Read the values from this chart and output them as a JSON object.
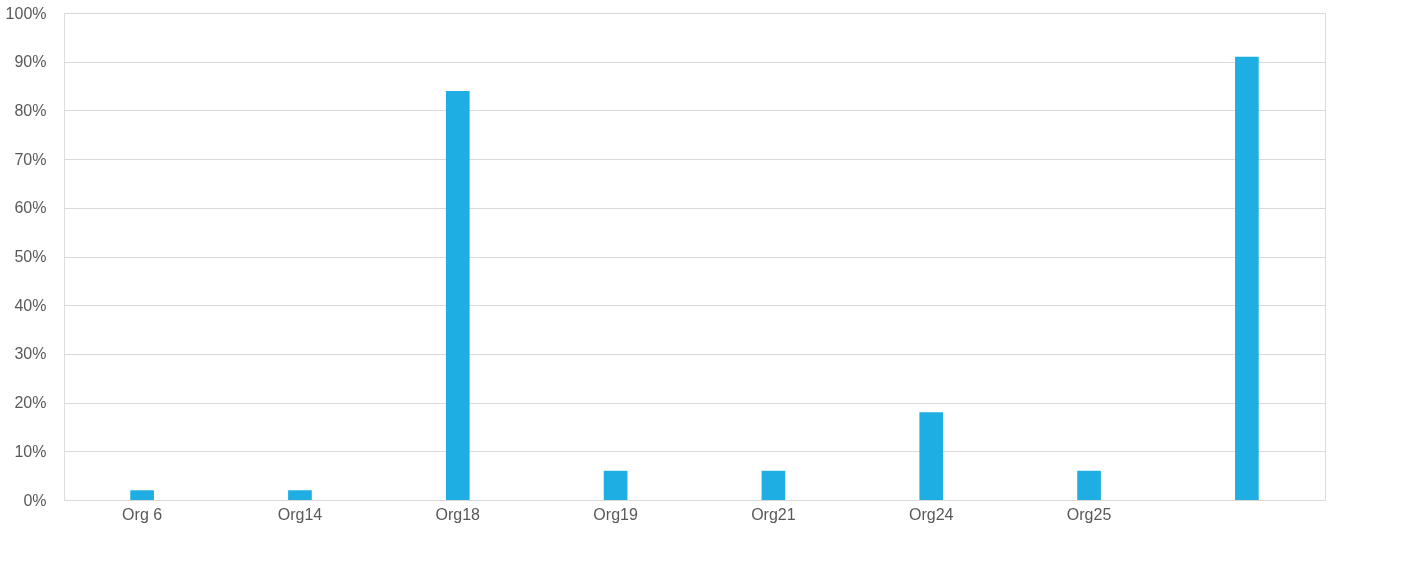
{
  "chart_data": {
    "type": "bar",
    "categories": [
      "Org 6",
      "Org14",
      "Org18",
      "Org19",
      "Org21",
      "Org24",
      "Org25",
      null
    ],
    "values": [
      2,
      2,
      84,
      6,
      6,
      18,
      6,
      91
    ],
    "color": "#1eaee4",
    "ylim": [
      0,
      100
    ],
    "yticks": [
      {
        "value": 0,
        "label": "0%"
      },
      {
        "value": 10,
        "label": "10%"
      },
      {
        "value": 20,
        "label": "20%"
      },
      {
        "value": 30,
        "label": "30%"
      },
      {
        "value": 40,
        "label": "40%"
      },
      {
        "value": 50,
        "label": "50%"
      },
      {
        "value": 60,
        "label": "60%"
      },
      {
        "value": 70,
        "label": "70%"
      },
      {
        "value": 80,
        "label": "80%"
      },
      {
        "value": 90,
        "label": "90%"
      },
      {
        "value": 100,
        "label": "100%"
      }
    ],
    "grid": "y"
  }
}
